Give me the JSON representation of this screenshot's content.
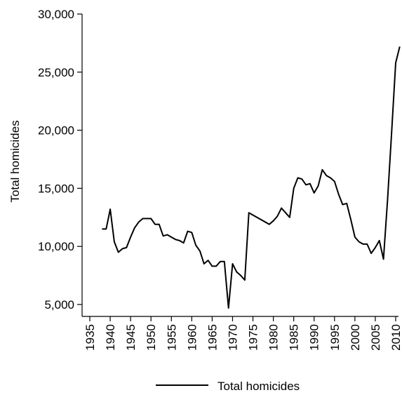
{
  "chart_data": {
    "type": "line",
    "ylabel": "Total homicides",
    "xlabel": "",
    "xlim": [
      1935,
      2010
    ],
    "ylim": [
      5000,
      30000
    ],
    "x_ticks": [
      "1935",
      "1940",
      "1945",
      "1950",
      "1955",
      "1960",
      "1965",
      "1970",
      "1975",
      "1980",
      "1985",
      "1990",
      "1995",
      "2000",
      "2005",
      "2010"
    ],
    "y_ticks": [
      "5,000",
      "10,000",
      "15,000",
      "20,000",
      "25,000",
      "30,000"
    ],
    "legend_position": "bottom",
    "line_color": "#000000",
    "series": [
      {
        "name": "Total homicides",
        "x": [
          1938,
          1939,
          1940,
          1941,
          1942,
          1943,
          1944,
          1945,
          1946,
          1947,
          1948,
          1949,
          1950,
          1951,
          1952,
          1953,
          1954,
          1955,
          1956,
          1957,
          1958,
          1959,
          1960,
          1961,
          1962,
          1963,
          1964,
          1965,
          1966,
          1967,
          1968,
          1969,
          1970,
          1971,
          1972,
          1973,
          1974,
          1979,
          1980,
          1981,
          1982,
          1983,
          1984,
          1985,
          1986,
          1987,
          1988,
          1989,
          1990,
          1991,
          1992,
          1993,
          1994,
          1995,
          1996,
          1997,
          1998,
          1999,
          2000,
          2001,
          2002,
          2003,
          2004,
          2005,
          2006,
          2007,
          2008,
          2009,
          2010,
          2011
        ],
        "y": [
          11500,
          11500,
          13200,
          10400,
          9500,
          9800,
          9900,
          10800,
          11600,
          12100,
          12400,
          12400,
          12400,
          11900,
          11900,
          10900,
          11000,
          10800,
          10600,
          10500,
          10300,
          11300,
          11200,
          10100,
          9600,
          8500,
          8800,
          8300,
          8300,
          8700,
          8700,
          4700,
          8500,
          7800,
          7500,
          7100,
          12900,
          11900,
          12200,
          12600,
          13300,
          12900,
          12500,
          15000,
          15900,
          15800,
          15300,
          15400,
          14600,
          15200,
          16600,
          16100,
          15900,
          15600,
          14500,
          13600,
          13700,
          12300,
          10800,
          10400,
          10200,
          10200,
          9400,
          9900,
          10500,
          8900,
          14000,
          19800,
          25800,
          27200
        ]
      }
    ]
  }
}
